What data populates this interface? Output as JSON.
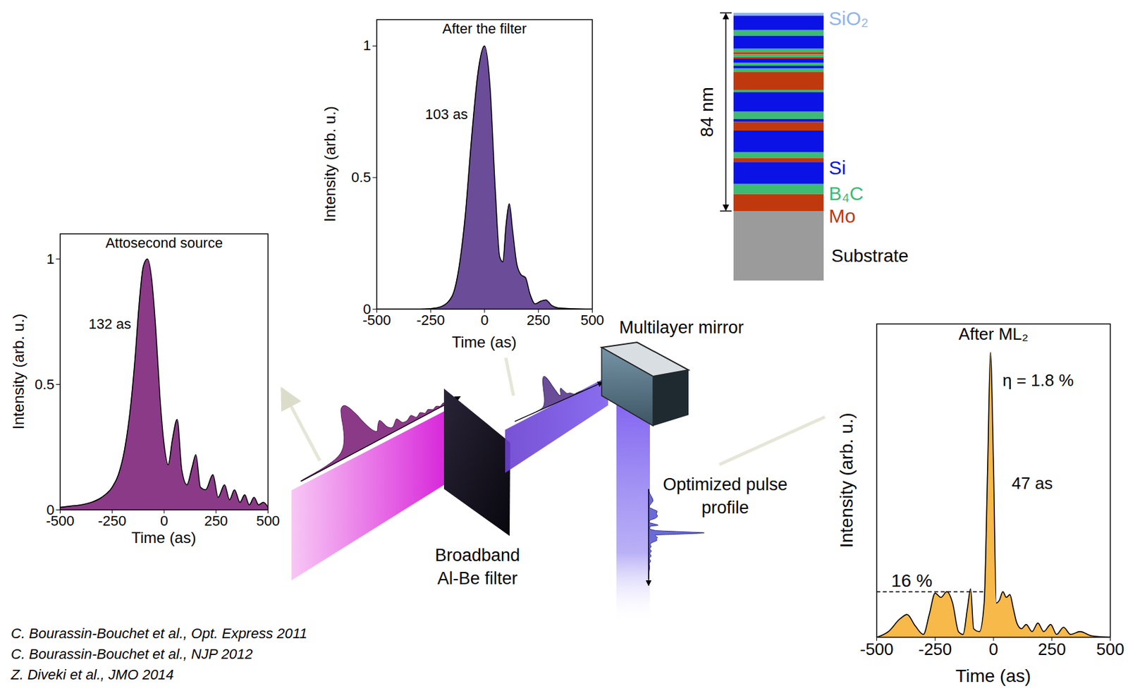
{
  "chart_data": [
    {
      "type": "area",
      "title": "Attosecond source",
      "xlabel": "Time (as)",
      "ylabel": "Intensity (arb. u.)",
      "x": [
        -500,
        -450,
        -400,
        -350,
        -300,
        -250,
        -220,
        -190,
        -160,
        -140,
        -120,
        -100,
        -80,
        -60,
        -40,
        -20,
        0,
        20,
        40,
        63,
        85,
        110,
        135,
        153,
        175,
        200,
        235,
        260,
        291,
        315,
        339,
        365,
        388,
        410,
        433,
        455,
        478,
        500
      ],
      "values": [
        0.01,
        0.015,
        0.02,
        0.03,
        0.05,
        0.09,
        0.14,
        0.24,
        0.42,
        0.6,
        0.82,
        0.97,
        1.0,
        0.92,
        0.72,
        0.45,
        0.26,
        0.18,
        0.28,
        0.36,
        0.16,
        0.1,
        0.17,
        0.22,
        0.09,
        0.08,
        0.14,
        0.05,
        0.1,
        0.04,
        0.08,
        0.03,
        0.06,
        0.02,
        0.05,
        0.02,
        0.03,
        0.01
      ],
      "color": "#8b3a88",
      "xlim": [
        -500,
        500
      ],
      "ylim": [
        0,
        1.1
      ],
      "xticks": [
        -500,
        -250,
        0,
        250,
        500
      ],
      "yticks": [
        0,
        0.5,
        1
      ],
      "fwhm_label": "132 as"
    },
    {
      "type": "area",
      "title": "After the filter",
      "xlabel": "Time (as)",
      "ylabel": "Intensity (arb. u.)",
      "x": [
        -500,
        -300,
        -250,
        -200,
        -150,
        -120,
        -90,
        -60,
        -30,
        0,
        25,
        50,
        70,
        85,
        100,
        115,
        130,
        150,
        170,
        190,
        210,
        235,
        260,
        285,
        310,
        340,
        400,
        500
      ],
      "values": [
        0,
        0,
        0.002,
        0.01,
        0.05,
        0.15,
        0.35,
        0.65,
        0.9,
        1.0,
        0.85,
        0.45,
        0.2,
        0.18,
        0.32,
        0.4,
        0.3,
        0.17,
        0.13,
        0.12,
        0.06,
        0.02,
        0.03,
        0.035,
        0.015,
        0.005,
        0.002,
        0
      ],
      "color": "#6b4c99",
      "xlim": [
        -500,
        500
      ],
      "ylim": [
        0,
        1.1
      ],
      "xticks": [
        -500,
        -250,
        0,
        250,
        500
      ],
      "yticks": [
        0,
        0.5,
        1
      ],
      "fwhm_label": "103 as"
    },
    {
      "type": "area",
      "title": "After ML₂",
      "xlabel": "Time (as)",
      "ylabel": "Intensity (arb. u.)",
      "x": [
        -500,
        -450,
        -400,
        -370,
        -335,
        -300,
        -275,
        -250,
        -225,
        -200,
        -175,
        -150,
        -130,
        -112,
        -98,
        -85,
        -60,
        -40,
        -25,
        -13,
        0,
        12,
        25,
        40,
        55,
        70,
        85,
        100,
        120,
        140,
        165,
        190,
        215,
        245,
        270,
        300,
        330,
        370,
        420,
        500
      ],
      "values": [
        0,
        0.02,
        0.065,
        0.08,
        0.04,
        0.01,
        0.08,
        0.155,
        0.14,
        0.16,
        0.12,
        0.02,
        0.01,
        0.1,
        0.17,
        0.03,
        0.02,
        0.12,
        0.6,
        1.0,
        0.6,
        0.12,
        0.13,
        0.16,
        0.14,
        0.15,
        0.1,
        0.05,
        0.03,
        0.045,
        0.02,
        0.05,
        0.02,
        0.045,
        0.01,
        0.035,
        0.01,
        0.02,
        0.005,
        0
      ],
      "color": "#f6b94a",
      "xlim": [
        -500,
        500
      ],
      "ylim": [
        0,
        1.1
      ],
      "xticks": [
        -500,
        -250,
        0,
        250,
        500
      ],
      "yticks": [],
      "tick_labels": "x",
      "fwhm_label": "47 as",
      "efficiency_label": "η = 1.8 %",
      "threshold": {
        "value": 0.16,
        "label": "16 %"
      }
    }
  ],
  "multilayer": {
    "thickness": {
      "value": 84,
      "label": "84 nm"
    },
    "materials": [
      {
        "name": "SiO₂",
        "color": "#8fb4ee"
      },
      {
        "name": "Si",
        "color": "#0a12e6"
      },
      {
        "name": "B₄C",
        "color": "#3dbb73"
      },
      {
        "name": "Mo",
        "color": "#c0390e"
      }
    ],
    "substrate": {
      "name": "Substrate",
      "color": "#9b9b9b"
    },
    "layers": [
      {
        "material": "SiO₂",
        "thickness": 1.2
      },
      {
        "material": "Si",
        "thickness": 6.1
      },
      {
        "material": "B₄C",
        "thickness": 2.4
      },
      {
        "material": "Si",
        "thickness": 5.5
      },
      {
        "material": "B₄C",
        "thickness": 1.5
      },
      {
        "material": "Mo",
        "thickness": 0.9
      },
      {
        "material": "B₄C",
        "thickness": 1.2
      },
      {
        "material": "Mo",
        "thickness": 0.6
      },
      {
        "material": "Si",
        "thickness": 1.8
      },
      {
        "material": "B₄C",
        "thickness": 1.2
      },
      {
        "material": "Si",
        "thickness": 1.2
      },
      {
        "material": "B₄C",
        "thickness": 1.5
      },
      {
        "material": "Mo",
        "thickness": 7.6
      },
      {
        "material": "B₄C",
        "thickness": 0.9
      },
      {
        "material": "Si",
        "thickness": 8.3
      },
      {
        "material": "B₄C",
        "thickness": 3.1
      },
      {
        "material": "Si",
        "thickness": 1.2
      },
      {
        "material": "Mo",
        "thickness": 3.7
      },
      {
        "material": "Si",
        "thickness": 9.2
      },
      {
        "material": "B₄C",
        "thickness": 2.4
      },
      {
        "material": "Mo",
        "thickness": 1.8
      },
      {
        "material": "Si",
        "thickness": 9.2
      },
      {
        "material": "B₄C",
        "thickness": 4.3
      },
      {
        "material": "Mo",
        "thickness": 7.2
      }
    ]
  },
  "schematic": {
    "filter_label": [
      "Broadband",
      "Al-Be filter"
    ],
    "mirror_label": "Multilayer mirror",
    "pulse_label": [
      "Optimized pulse",
      "profile"
    ]
  },
  "references": [
    "C. Bourassin-Bouchet et al., Opt. Express 2011",
    "C. Bourassin-Bouchet et al., NJP 2012",
    "Z. Diveki et al., JMO 2014"
  ]
}
